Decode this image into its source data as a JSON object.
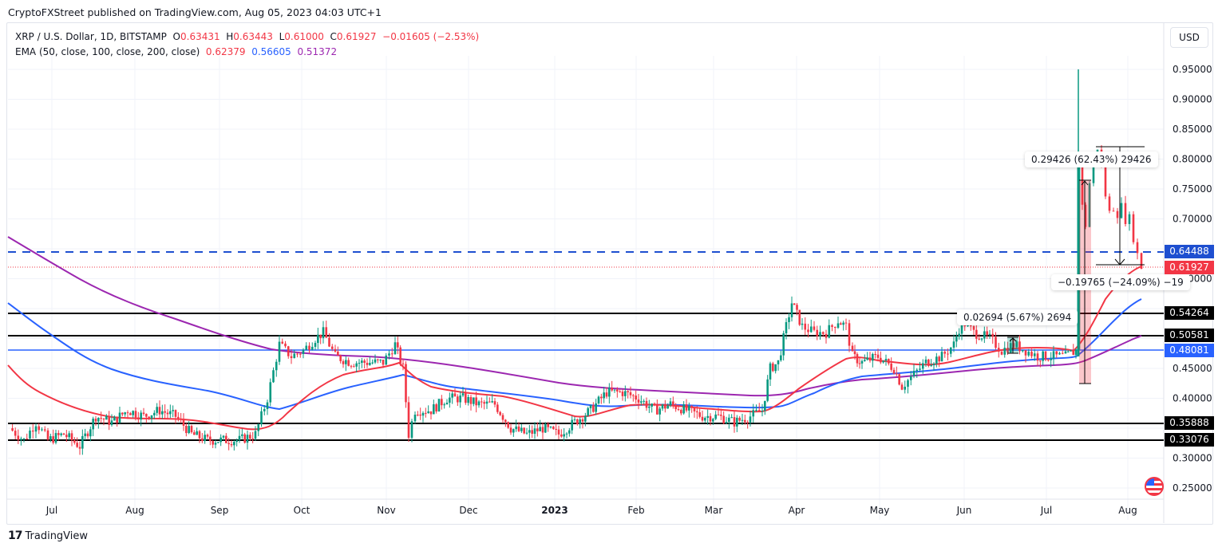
{
  "publisher": "CryptoFXStreet published on TradingView.com, Aug 05, 2023 04:03 UTC+1",
  "legend": {
    "symbol": "XRP / U.S. Dollar, 1D, BITSTAMP",
    "o_label": "O",
    "o": "0.63431",
    "h_label": "H",
    "h": "0.63443",
    "l_label": "L",
    "l": "0.61000",
    "c_label": "C",
    "c": "0.61927",
    "change": "−0.01605 (−2.53%)",
    "ema_label": "EMA (50, close, 100, close, 200, close)",
    "ema50": "0.62379",
    "ema100": "0.56605",
    "ema200": "0.51372"
  },
  "currency": "USD",
  "price_tags": {
    "dashed_level": "0.64488",
    "last_price": "0.61927",
    "r1": "0.54264",
    "r2": "0.50581",
    "blue_level": "0.48081",
    "s1": "0.35888",
    "s2": "0.33076"
  },
  "measures": {
    "rally": "0.29426 (62.43%) 29426",
    "drop": "−0.19765 (−24.09%) −19",
    "small": "0.02694 (5.67%) 2694"
  },
  "brand": "TradingView",
  "colors": {
    "up": "#089981",
    "down": "#f23645",
    "ema50": "#f23645",
    "ema100": "#2962ff",
    "ema200": "#9c27b0",
    "level": "#000000",
    "dashed": "#1e4fd0"
  },
  "chart_data": {
    "type": "candlestick",
    "title": "XRP / U.S. Dollar, 1D, BITSTAMP",
    "xlabel": "",
    "ylabel": "USD",
    "x_ticks": [
      "Jul",
      "Aug",
      "Sep",
      "Oct",
      "Nov",
      "Dec",
      "2023",
      "Feb",
      "Mar",
      "Apr",
      "May",
      "Jun",
      "Jul",
      "Aug"
    ],
    "y_ticks": [
      0.95,
      0.9,
      0.85,
      0.8,
      0.75,
      0.7,
      0.6,
      0.45,
      0.4,
      0.3,
      0.25
    ],
    "ylim": [
      0.24,
      0.97
    ],
    "grid": true,
    "last_ohlc": {
      "open": 0.63431,
      "high": 0.63443,
      "low": 0.61,
      "close": 0.61927,
      "change": -0.01605,
      "change_pct": -2.53
    },
    "horizontal_levels": [
      {
        "value": 0.64488,
        "style": "dashed",
        "color": "#1e4fd0"
      },
      {
        "value": 0.54264,
        "style": "solid",
        "color": "#000000"
      },
      {
        "value": 0.50581,
        "style": "solid",
        "color": "#000000"
      },
      {
        "value": 0.48081,
        "style": "solid",
        "color": "#2962ff"
      },
      {
        "value": 0.35888,
        "style": "solid",
        "color": "#000000"
      },
      {
        "value": 0.33076,
        "style": "solid",
        "color": "#000000"
      }
    ],
    "series": [
      {
        "name": "EMA 50",
        "last": 0.62379,
        "approx_monthly": [
          0.46,
          0.37,
          0.36,
          0.34,
          0.42,
          0.45,
          0.38,
          0.36,
          0.39,
          0.37,
          0.38,
          0.46,
          0.47,
          0.47,
          0.62
        ]
      },
      {
        "name": "EMA 100",
        "last": 0.56605,
        "approx_monthly": [
          0.56,
          0.46,
          0.41,
          0.37,
          0.41,
          0.44,
          0.41,
          0.39,
          0.38,
          0.38,
          0.41,
          0.44,
          0.45,
          0.46,
          0.57
        ]
      },
      {
        "name": "EMA 200",
        "last": 0.51372,
        "approx_monthly": [
          0.67,
          0.59,
          0.53,
          0.5,
          0.48,
          0.48,
          0.45,
          0.43,
          0.42,
          0.41,
          0.43,
          0.44,
          0.45,
          0.46,
          0.51
        ]
      }
    ],
    "annotations": [
      "0.29426 (62.43%) 29426",
      "−0.19765 (−24.09%) −19",
      "0.02694 (5.67%) 2694"
    ],
    "price_range_highlights": {
      "jul_2023_spike_high": 0.95,
      "recent_high": 0.85,
      "current": 0.61927
    }
  }
}
